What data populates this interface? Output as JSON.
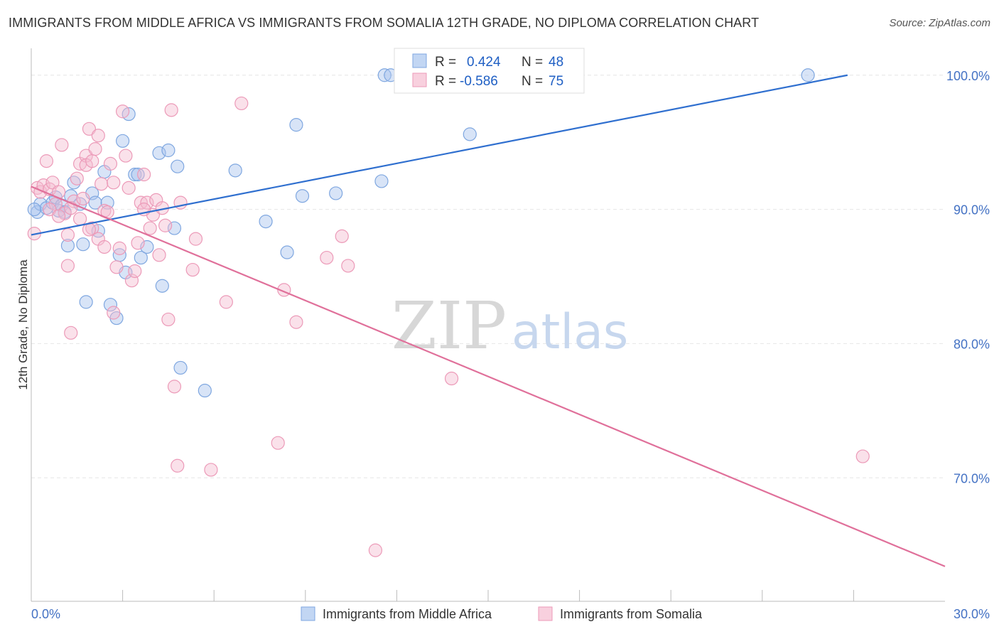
{
  "title": "IMMIGRANTS FROM MIDDLE AFRICA VS IMMIGRANTS FROM SOMALIA 12TH GRADE, NO DIPLOMA CORRELATION CHART",
  "source": "Source: ZipAtlas.com",
  "watermark": {
    "zip": "ZIP",
    "atlas": "atlas"
  },
  "colors": {
    "blue_fill": "#a8c4ee",
    "blue_stroke": "#7fa7e0",
    "blue_line": "#2f6fcf",
    "pink_fill": "#f5bcd0",
    "pink_stroke": "#ec9ab8",
    "pink_line": "#e0709a",
    "grid": "#e6e6e6",
    "axis_text": "#4472c4"
  },
  "legend": {
    "rows": [
      {
        "r_label": "R =",
        "r_value": "0.424",
        "n_label": "N =",
        "n_value": "48"
      },
      {
        "r_label": "R =",
        "r_value": "-0.586",
        "n_label": "N =",
        "n_value": "75"
      }
    ]
  },
  "bottom_legend": [
    "Immigrants from Middle Africa",
    "Immigrants from Somalia"
  ],
  "chart_data": {
    "type": "scatter",
    "title": "IMMIGRANTS FROM MIDDLE AFRICA VS IMMIGRANTS FROM SOMALIA 12TH GRADE, NO DIPLOMA CORRELATION CHART",
    "xlabel": "",
    "ylabel": "12th Grade, No Diploma",
    "xlim": [
      0,
      30
    ],
    "ylim": [
      60.8,
      102
    ],
    "x_tick_labels": [
      "0.0%",
      "30.0%"
    ],
    "x_ticks_minor": [
      3,
      6,
      9,
      12,
      15,
      18,
      21,
      24,
      27
    ],
    "y_ticks": [
      70,
      80,
      90,
      100
    ],
    "y_tick_labels": [
      "70.0%",
      "80.0%",
      "90.0%",
      "100.0%"
    ],
    "grid": true,
    "series": [
      {
        "name": "Immigrants from Middle Africa",
        "trend": {
          "x": [
            0,
            26.8
          ],
          "y": [
            88.1,
            100.0
          ]
        },
        "points": [
          [
            0.2,
            89.8
          ],
          [
            0.3,
            90.4
          ],
          [
            0.5,
            90.1
          ],
          [
            0.7,
            90.5
          ],
          [
            0.8,
            90.9
          ],
          [
            0.9,
            89.9
          ],
          [
            1.0,
            90.3
          ],
          [
            1.1,
            89.8
          ],
          [
            1.2,
            87.3
          ],
          [
            1.3,
            91.0
          ],
          [
            1.4,
            92.0
          ],
          [
            1.6,
            90.4
          ],
          [
            1.7,
            87.4
          ],
          [
            1.8,
            83.1
          ],
          [
            2.0,
            91.2
          ],
          [
            2.1,
            90.5
          ],
          [
            2.2,
            88.4
          ],
          [
            2.4,
            92.8
          ],
          [
            2.5,
            90.5
          ],
          [
            2.6,
            82.9
          ],
          [
            2.8,
            81.9
          ],
          [
            2.9,
            86.6
          ],
          [
            3.0,
            95.1
          ],
          [
            3.1,
            85.3
          ],
          [
            3.2,
            97.1
          ],
          [
            3.4,
            92.6
          ],
          [
            3.5,
            92.6
          ],
          [
            3.6,
            86.4
          ],
          [
            3.8,
            87.2
          ],
          [
            4.2,
            94.2
          ],
          [
            4.3,
            84.3
          ],
          [
            4.5,
            94.4
          ],
          [
            4.7,
            88.6
          ],
          [
            4.8,
            93.2
          ],
          [
            4.9,
            78.2
          ],
          [
            5.7,
            76.5
          ],
          [
            6.7,
            92.9
          ],
          [
            7.7,
            89.1
          ],
          [
            8.4,
            86.8
          ],
          [
            8.7,
            96.3
          ],
          [
            8.9,
            91.0
          ],
          [
            10.0,
            91.2
          ],
          [
            11.5,
            92.1
          ],
          [
            11.6,
            100.0
          ],
          [
            11.8,
            100.0
          ],
          [
            14.4,
            95.6
          ],
          [
            25.5,
            100.0
          ],
          [
            0.1,
            90.0
          ]
        ]
      },
      {
        "name": "Immigrants from Somalia",
        "trend": {
          "x": [
            0,
            30
          ],
          "y": [
            91.7,
            63.4
          ]
        },
        "points": [
          [
            0.1,
            88.2
          ],
          [
            0.2,
            91.6
          ],
          [
            0.3,
            91.3
          ],
          [
            0.4,
            91.8
          ],
          [
            0.5,
            93.6
          ],
          [
            0.6,
            91.5
          ],
          [
            0.7,
            92.0
          ],
          [
            0.8,
            90.4
          ],
          [
            0.9,
            91.3
          ],
          [
            1.0,
            94.8
          ],
          [
            1.1,
            89.7
          ],
          [
            1.2,
            85.8
          ],
          [
            1.2,
            88.1
          ],
          [
            1.3,
            80.8
          ],
          [
            1.4,
            90.6
          ],
          [
            1.5,
            92.3
          ],
          [
            1.6,
            93.4
          ],
          [
            1.6,
            89.3
          ],
          [
            1.7,
            90.8
          ],
          [
            1.8,
            94.0
          ],
          [
            1.8,
            93.3
          ],
          [
            1.9,
            96.0
          ],
          [
            2.0,
            93.6
          ],
          [
            2.0,
            88.6
          ],
          [
            2.1,
            94.5
          ],
          [
            2.2,
            95.5
          ],
          [
            2.2,
            87.8
          ],
          [
            2.3,
            91.9
          ],
          [
            2.4,
            89.9
          ],
          [
            2.5,
            89.8
          ],
          [
            2.6,
            93.4
          ],
          [
            2.7,
            82.3
          ],
          [
            2.7,
            92.0
          ],
          [
            2.8,
            85.7
          ],
          [
            2.9,
            87.1
          ],
          [
            3.0,
            97.3
          ],
          [
            3.1,
            94.0
          ],
          [
            3.2,
            91.6
          ],
          [
            3.3,
            84.7
          ],
          [
            3.4,
            85.4
          ],
          [
            3.5,
            87.5
          ],
          [
            3.6,
            90.5
          ],
          [
            3.7,
            92.6
          ],
          [
            3.8,
            90.5
          ],
          [
            3.9,
            88.6
          ],
          [
            4.0,
            89.6
          ],
          [
            4.1,
            90.7
          ],
          [
            4.2,
            86.6
          ],
          [
            4.3,
            90.1
          ],
          [
            4.4,
            88.8
          ],
          [
            4.5,
            81.8
          ],
          [
            4.6,
            97.4
          ],
          [
            4.7,
            76.8
          ],
          [
            4.8,
            70.9
          ],
          [
            4.9,
            90.5
          ],
          [
            5.3,
            85.5
          ],
          [
            5.4,
            87.8
          ],
          [
            5.9,
            70.6
          ],
          [
            6.4,
            83.1
          ],
          [
            6.9,
            97.9
          ],
          [
            8.1,
            72.6
          ],
          [
            8.3,
            84.0
          ],
          [
            8.7,
            81.6
          ],
          [
            9.7,
            86.4
          ],
          [
            10.2,
            88.0
          ],
          [
            10.4,
            85.8
          ],
          [
            11.3,
            64.6
          ],
          [
            13.8,
            77.4
          ],
          [
            27.3,
            71.6
          ],
          [
            1.3,
            90.1
          ],
          [
            0.6,
            90.0
          ],
          [
            1.9,
            88.5
          ],
          [
            3.7,
            90.0
          ],
          [
            2.4,
            87.2
          ],
          [
            0.9,
            89.5
          ]
        ]
      }
    ]
  }
}
